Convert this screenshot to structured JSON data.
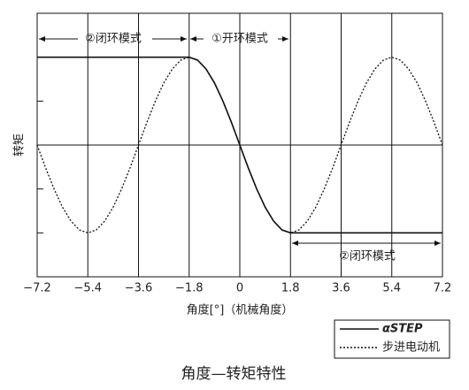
{
  "chart_data": {
    "type": "line",
    "x": [
      -7.2,
      -6.9,
      -6.6,
      -6.3,
      -6.0,
      -5.7,
      -5.4,
      -5.1,
      -4.8,
      -4.5,
      -4.2,
      -3.9,
      -3.6,
      -3.3,
      -3.0,
      -2.7,
      -2.4,
      -2.1,
      -1.8,
      -1.5,
      -1.2,
      -0.9,
      -0.6,
      -0.3,
      0,
      0.3,
      0.6,
      0.9,
      1.2,
      1.5,
      1.8,
      2.1,
      2.4,
      2.7,
      3.0,
      3.3,
      3.6,
      3.9,
      4.2,
      4.5,
      4.8,
      5.1,
      5.4,
      5.7,
      6.0,
      6.3,
      6.6,
      6.9,
      7.2
    ],
    "series": [
      {
        "name": "αSTEP",
        "color": "#111111",
        "style": "solid",
        "values": [
          1,
          1,
          1,
          1,
          1,
          1,
          1,
          1,
          1,
          1,
          1,
          1,
          1,
          1,
          1,
          1,
          1,
          1,
          1,
          0.966,
          0.866,
          0.707,
          0.5,
          0.259,
          0,
          -0.259,
          -0.5,
          -0.707,
          -0.866,
          -0.966,
          -1,
          -1,
          -1,
          -1,
          -1,
          -1,
          -1,
          -1,
          -1,
          -1,
          -1,
          -1,
          -1,
          -1,
          -1,
          -1,
          -1,
          -1,
          -1
        ]
      },
      {
        "name": "步进电动机",
        "color": "#111111",
        "style": "dotted",
        "values": [
          0,
          -0.259,
          -0.5,
          -0.707,
          -0.866,
          -0.966,
          -1,
          -0.966,
          -0.866,
          -0.707,
          -0.5,
          -0.259,
          0,
          0.259,
          0.5,
          0.707,
          0.866,
          0.966,
          1,
          0.966,
          0.866,
          0.707,
          0.5,
          0.259,
          0,
          -0.259,
          -0.5,
          -0.707,
          -0.866,
          -0.966,
          -1,
          -0.966,
          -0.866,
          -0.707,
          -0.5,
          -0.259,
          0,
          0.259,
          0.5,
          0.707,
          0.866,
          0.966,
          1,
          0.966,
          0.866,
          0.707,
          0.5,
          0.259,
          0
        ]
      }
    ],
    "xlim": [
      -7.2,
      7.2
    ],
    "xticks": [
      {
        "value": -7.2,
        "label": "−7.2"
      },
      {
        "value": -5.4,
        "label": "−5.4"
      },
      {
        "value": -3.6,
        "label": "−3.6"
      },
      {
        "value": -1.8,
        "label": "−1.8"
      },
      0,
      1.8,
      3.6,
      5.4,
      7.2
    ],
    "ylim": [
      -1.5,
      1.5
    ],
    "yticks": [
      -1,
      -0.5,
      0,
      0.5,
      1
    ],
    "xlabel": "角度[°]（机械角度）",
    "ylabel": "转矩",
    "grid": true,
    "annotations": [
      "②闭环模式",
      "①开环模式",
      "②闭环模式"
    ],
    "caption": "角度—转矩特性"
  }
}
